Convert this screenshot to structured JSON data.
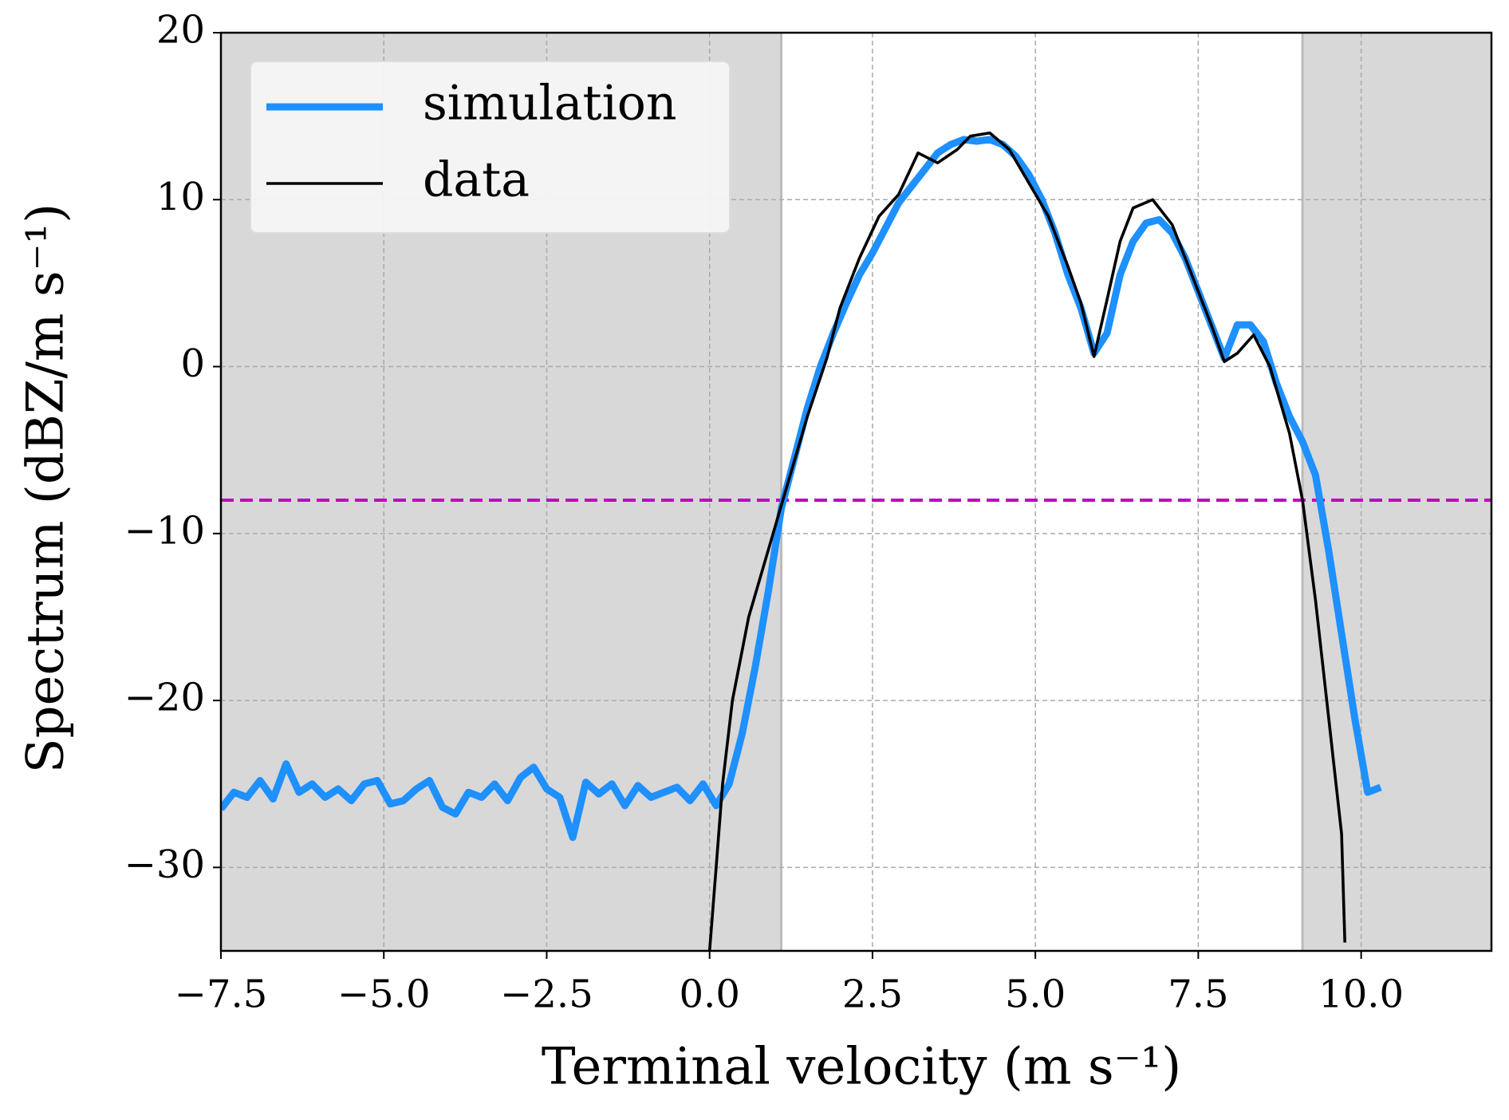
{
  "chart_data": {
    "type": "line",
    "xlabel": "Terminal velocity (m s⁻¹)",
    "ylabel": "Spectrum (dBZ/m s⁻¹)",
    "xlim": [
      -7.5,
      12
    ],
    "ylim": [
      -35,
      20
    ],
    "xticks": [
      {
        "value": -7.5,
        "label": "−7.5"
      },
      {
        "value": -5,
        "label": "−5.0"
      },
      {
        "value": -2.5,
        "label": "−2.5"
      },
      {
        "value": 0,
        "label": "0.0"
      },
      2.5,
      {
        "value": 5,
        "label": "5.0"
      },
      7.5,
      {
        "value": 10,
        "label": "10.0"
      }
    ],
    "yticks": [
      {
        "value": -30,
        "label": "−30"
      },
      {
        "value": -20,
        "label": "−20"
      },
      {
        "value": -10,
        "label": "−10"
      },
      0,
      10,
      20
    ],
    "grid": true,
    "legend": "upper left",
    "shaded_regions": [
      [
        -7.5,
        1.1
      ],
      [
        9.1,
        12
      ]
    ],
    "shade_color": "#d8d8d8",
    "hline": -8,
    "hline_color": "#c000c0",
    "series": [
      {
        "name": "simulation",
        "color": "#1e90ff",
        "x": [
          -7.5,
          -7.3,
          -7.1,
          -6.9,
          -6.7,
          -6.5,
          -6.3,
          -6.1,
          -5.9,
          -5.7,
          -5.5,
          -5.3,
          -5.1,
          -4.9,
          -4.7,
          -4.5,
          -4.3,
          -4.1,
          -3.9,
          -3.7,
          -3.5,
          -3.3,
          -3.1,
          -2.9,
          -2.7,
          -2.5,
          -2.3,
          -2.1,
          -1.9,
          -1.7,
          -1.5,
          -1.3,
          -1.1,
          -0.9,
          -0.7,
          -0.5,
          -0.3,
          -0.1,
          0.1,
          0.3,
          0.5,
          0.7,
          0.9,
          1.1,
          1.3,
          1.5,
          1.7,
          1.9,
          2.1,
          2.3,
          2.5,
          2.7,
          2.9,
          3.1,
          3.3,
          3.5,
          3.7,
          3.9,
          4.1,
          4.3,
          4.5,
          4.7,
          4.9,
          5.1,
          5.3,
          5.5,
          5.7,
          5.9,
          6.1,
          6.3,
          6.5,
          6.7,
          6.9,
          7.1,
          7.3,
          7.5,
          7.7,
          7.9,
          8.1,
          8.3,
          8.5,
          8.7,
          8.9,
          9.1,
          9.3,
          9.5,
          9.7,
          9.9,
          10.1,
          10.3
        ],
        "values": [
          -26.5,
          -25.5,
          -25.8,
          -24.8,
          -25.9,
          -23.8,
          -25.5,
          -25,
          -25.8,
          -25.3,
          -26,
          -25,
          -24.8,
          -26.2,
          -26,
          -25.3,
          -24.8,
          -26.4,
          -26.8,
          -25.5,
          -25.8,
          -25,
          -26,
          -24.6,
          -24,
          -25.3,
          -25.8,
          -28.2,
          -24.9,
          -25.6,
          -25,
          -26.3,
          -25.1,
          -25.8,
          -25.5,
          -25.2,
          -26,
          -25,
          -26.3,
          -25,
          -22,
          -18,
          -13.5,
          -8.5,
          -5.5,
          -2.5,
          0,
          2,
          3.8,
          5.5,
          6.8,
          8.3,
          9.8,
          10.8,
          11.8,
          12.8,
          13.3,
          13.6,
          13.5,
          13.6,
          13.3,
          12.6,
          11.5,
          10,
          8,
          5.5,
          3.5,
          0.8,
          2,
          5.5,
          7.5,
          8.6,
          8.8,
          8,
          6.5,
          4.5,
          2.5,
          0.5,
          2.5,
          2.5,
          1.5,
          -1,
          -3,
          -4.5,
          -6.5,
          -11,
          -16,
          -21,
          -25.5,
          -25.2
        ]
      },
      {
        "name": "data",
        "color": "#000000",
        "x": [
          0,
          0.1,
          0.2,
          0.35,
          0.6,
          0.9,
          1.2,
          1.5,
          1.8,
          2,
          2.3,
          2.6,
          2.9,
          3.2,
          3.5,
          3.8,
          4,
          4.3,
          4.6,
          4.9,
          5.2,
          5.5,
          5.7,
          5.9,
          6.1,
          6.3,
          6.5,
          6.8,
          7.1,
          7.4,
          7.7,
          7.9,
          8.1,
          8.35,
          8.6,
          8.9,
          9.1,
          9.3,
          9.5,
          9.7,
          9.75
        ],
        "values": [
          -35,
          -30,
          -25,
          -20,
          -15,
          -11,
          -7,
          -3,
          0.5,
          3.5,
          6.5,
          9,
          10.3,
          12.8,
          12.2,
          13,
          13.8,
          14,
          13,
          11,
          9,
          6,
          3.8,
          0.6,
          4,
          7.5,
          9.5,
          10,
          8.5,
          5.5,
          2.5,
          0.3,
          0.8,
          1.9,
          0,
          -4,
          -8,
          -14,
          -21,
          -28,
          -34.5
        ]
      }
    ]
  }
}
